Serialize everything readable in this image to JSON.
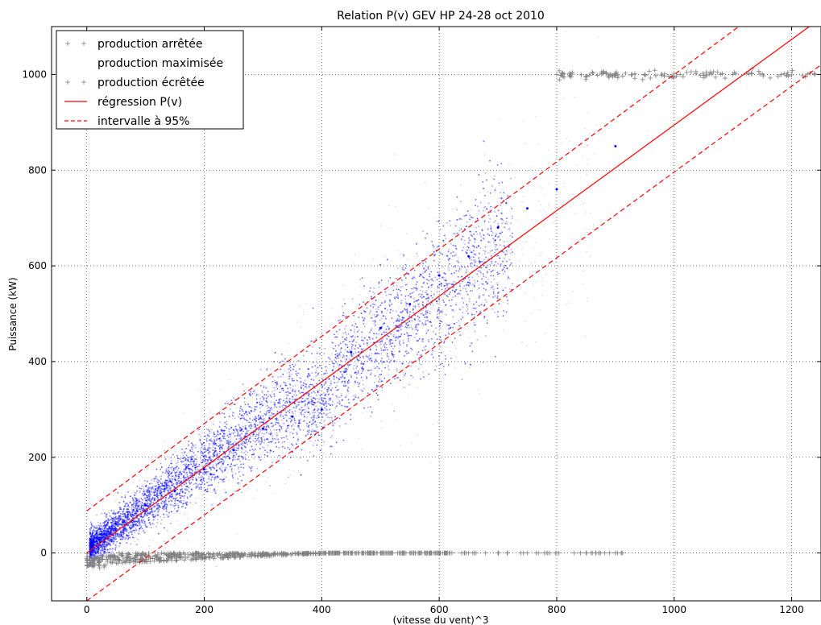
{
  "chart_data": {
    "type": "scatter",
    "title": "Relation P(v) GEV HP 24-28 oct 2010",
    "xlabel": "(vitesse du vent)^3",
    "ylabel": "Puissance (kW)",
    "xlim": [
      -60,
      1250
    ],
    "ylim": [
      -100,
      1100
    ],
    "xticks": [
      0,
      200,
      400,
      600,
      800,
      1000,
      1200
    ],
    "yticks": [
      0,
      200,
      400,
      600,
      800,
      1000
    ],
    "grid": true,
    "legend_position": "top-left",
    "series": [
      {
        "name": "production arrêtée",
        "kind": "scatter",
        "marker": "plus",
        "color": "#808080",
        "sample_points": [
          [
            5,
            -20
          ],
          [
            10,
            -15
          ],
          [
            20,
            -10
          ],
          [
            40,
            -8
          ],
          [
            60,
            -5
          ],
          [
            100,
            -4
          ],
          [
            150,
            -3
          ],
          [
            200,
            -3
          ],
          [
            250,
            -2
          ],
          [
            300,
            -2
          ],
          [
            350,
            -1
          ],
          [
            400,
            0
          ],
          [
            450,
            0
          ],
          [
            500,
            0
          ],
          [
            550,
            0
          ],
          [
            600,
            0
          ],
          [
            650,
            0
          ],
          [
            700,
            0
          ],
          [
            750,
            0
          ],
          [
            800,
            0
          ],
          [
            850,
            0
          ],
          [
            900,
            0
          ]
        ]
      },
      {
        "name": "production maximisée",
        "kind": "scatter",
        "marker": "dot",
        "color": "#0000ff",
        "sample_points": [
          [
            10,
            5
          ],
          [
            50,
            60
          ],
          [
            100,
            100
          ],
          [
            150,
            130
          ],
          [
            200,
            175
          ],
          [
            250,
            215
          ],
          [
            300,
            260
          ],
          [
            350,
            285
          ],
          [
            400,
            300
          ],
          [
            450,
            420
          ],
          [
            500,
            470
          ],
          [
            550,
            520
          ],
          [
            600,
            580
          ],
          [
            650,
            620
          ],
          [
            700,
            680
          ],
          [
            750,
            720
          ],
          [
            800,
            760
          ],
          [
            900,
            850
          ]
        ]
      },
      {
        "name": "production écrêtée",
        "kind": "scatter",
        "marker": "plus",
        "color": "#808080",
        "sample_points": [
          [
            800,
            1000
          ],
          [
            850,
            995
          ],
          [
            880,
            1005
          ],
          [
            900,
            998
          ],
          [
            950,
            1000
          ],
          [
            1000,
            1002
          ],
          [
            1050,
            998
          ],
          [
            1100,
            1000
          ],
          [
            1150,
            1001
          ],
          [
            1200,
            999
          ],
          [
            1240,
            1000
          ]
        ]
      },
      {
        "name": "régression P(v)",
        "kind": "line",
        "style": "solid",
        "color": "#ff0000",
        "x": [
          0,
          1230
        ],
        "y": [
          0,
          1100
        ]
      },
      {
        "name": "intervalle à 95%",
        "kind": "line",
        "style": "dashed",
        "color": "#ff0000",
        "bands": [
          {
            "x": [
              0,
              1110
            ],
            "y": [
              88,
              1100
            ]
          },
          {
            "x": [
              0,
              1250
            ],
            "y": [
              -100,
              1020
            ]
          }
        ]
      }
    ]
  }
}
